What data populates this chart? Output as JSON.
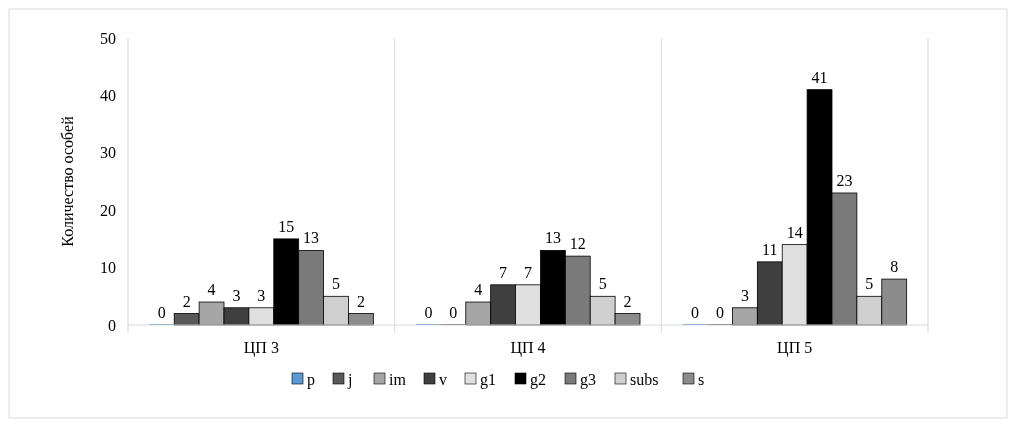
{
  "chart_data": {
    "type": "bar",
    "ylabel": "Количество особей",
    "categories": [
      "ЦП 3",
      "ЦП 4",
      "ЦП 5"
    ],
    "series": [
      {
        "name": "p",
        "color": "#5b9bd5",
        "values": [
          0,
          0,
          0
        ]
      },
      {
        "name": "j",
        "color": "#595959",
        "values": [
          2,
          0,
          0
        ]
      },
      {
        "name": "im",
        "color": "#a6a6a6",
        "values": [
          4,
          4,
          3
        ]
      },
      {
        "name": "v",
        "color": "#3f3f3f",
        "values": [
          3,
          7,
          11
        ]
      },
      {
        "name": "g1",
        "color": "#e0e0e0",
        "values": [
          3,
          7,
          14
        ]
      },
      {
        "name": "g2",
        "color": "#000000",
        "values": [
          15,
          13,
          41
        ]
      },
      {
        "name": "g3",
        "color": "#7a7a7a",
        "values": [
          13,
          12,
          23
        ]
      },
      {
        "name": "subs",
        "color": "#cfcfcf",
        "values": [
          5,
          5,
          5
        ]
      },
      {
        "name": "s",
        "color": "#8c8c8c",
        "values": [
          2,
          2,
          8
        ]
      }
    ],
    "ylim": [
      0,
      50
    ],
    "yticks": [
      0,
      10,
      20,
      30,
      40,
      50
    ],
    "data_labels": true,
    "legend": "bottom",
    "grid": false
  }
}
